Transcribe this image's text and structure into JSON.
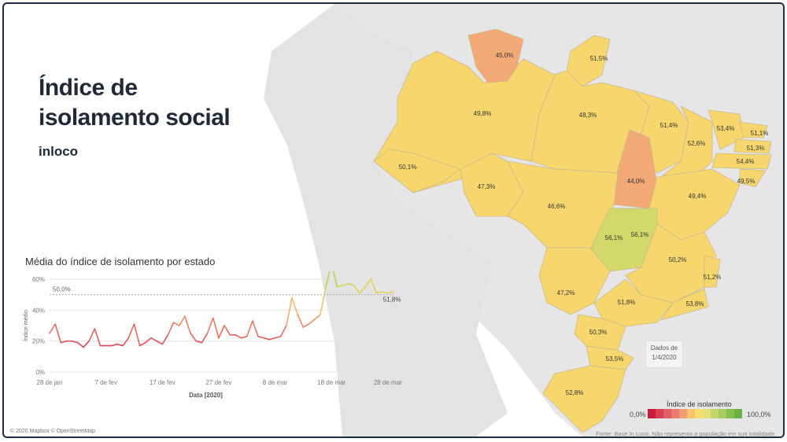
{
  "header": {
    "title_line1": "Índice de",
    "title_line2": "isolamento social",
    "subtitle": "inloco"
  },
  "map": {
    "state_labels": [
      {
        "state": "RR",
        "value": "45,0%"
      },
      {
        "state": "AP",
        "value": "51,5%"
      },
      {
        "state": "AM",
        "value": "49,8%"
      },
      {
        "state": "PA",
        "value": "48,3%"
      },
      {
        "state": "MA",
        "value": "51,4%"
      },
      {
        "state": "CE",
        "value": "53,4%"
      },
      {
        "state": "RN",
        "value": "51,1%"
      },
      {
        "state": "PI",
        "value": "52,6%"
      },
      {
        "state": "PB",
        "value": "51,3%"
      },
      {
        "state": "PE",
        "value": "54,4%"
      },
      {
        "state": "AL",
        "value": "49,5%"
      },
      {
        "state": "AC",
        "value": "50,1%"
      },
      {
        "state": "RO",
        "value": "47,3%"
      },
      {
        "state": "TO",
        "value": "44,0%"
      },
      {
        "state": "MT",
        "value": "46,6%"
      },
      {
        "state": "BA",
        "value": "49,4%"
      },
      {
        "state": "GO",
        "value": "56,1%"
      },
      {
        "state": "DF",
        "value": "56,1%"
      },
      {
        "state": "MG",
        "value": "50,2%"
      },
      {
        "state": "ES",
        "value": "51,2%"
      },
      {
        "state": "MS",
        "value": "47,2%"
      },
      {
        "state": "SP",
        "value": "51,8%"
      },
      {
        "state": "RJ",
        "value": "53,8%"
      },
      {
        "state": "PR",
        "value": "50,3%"
      },
      {
        "state": "SC",
        "value": "53,5%"
      },
      {
        "state": "RS",
        "value": "52,8%"
      }
    ],
    "callout_line1": "Dados de",
    "callout_line2": "1/4/2020",
    "attribution": "© 2020 Mapbox © OpenStreetMap",
    "source": "Fonte: Base In Loco. Não representa a população em sua totalidade."
  },
  "legend": {
    "title": "Índice de isolamento",
    "min_label": "0,0%",
    "max_label": "100,0%",
    "colors": [
      "#c81d3b",
      "#d93f53",
      "#e05d63",
      "#e97a6d",
      "#f29a72",
      "#f7c46a",
      "#f5de6e",
      "#dfe07a",
      "#c3d66a",
      "#a5cc5c",
      "#86bf4e",
      "#67b043"
    ]
  },
  "chart_data": {
    "type": "line",
    "title": "Média do índice de isolamento por estado",
    "xlabel": "Data [2020]",
    "ylabel": "Índice médio",
    "ylim": [
      0,
      60
    ],
    "yticks": [
      0,
      20,
      40,
      60
    ],
    "ytick_labels": [
      "0%",
      "20%",
      "40%",
      "60%"
    ],
    "xtick_labels": [
      "28 de jan",
      "7 de fev",
      "17 de fev",
      "27 de fev",
      "8 de mar",
      "18 de mar",
      "28 de mar"
    ],
    "xtick_day_index": [
      0,
      10,
      20,
      30,
      40,
      50,
      60
    ],
    "reference_line": {
      "value": 50,
      "label": "50,0%"
    },
    "end_label": "51,8%",
    "grid": true,
    "x_start_date": "2020-01-28",
    "values": [
      25,
      31,
      19,
      20,
      20,
      19,
      16,
      20,
      28,
      17,
      17,
      17,
      18,
      17,
      22,
      31,
      17,
      19,
      22,
      20,
      18,
      24,
      32,
      30,
      36,
      25,
      20,
      19,
      25,
      35,
      22,
      30,
      24,
      24,
      22,
      23,
      33,
      23,
      22,
      21,
      22,
      23,
      30,
      48,
      37,
      29,
      31,
      34,
      37,
      55,
      70,
      55,
      56,
      57,
      56,
      51,
      55,
      60,
      51,
      52,
      51,
      52
    ]
  }
}
